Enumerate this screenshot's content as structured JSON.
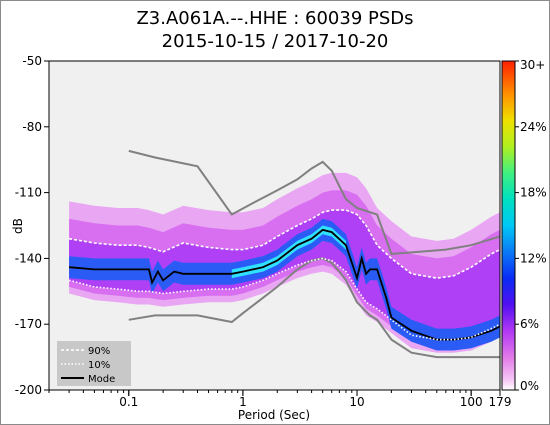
{
  "chart_data": {
    "type": "heatmap",
    "title": "Z3.A061A.--.HHE : 60039 PSDs",
    "subtitle": "2015-10-15 / 2017-10-20",
    "xlabel": "Period (Sec)",
    "ylabel": "dB",
    "x_scale": "log",
    "xlim": [
      0.02,
      179
    ],
    "ylim": [
      -200,
      -50
    ],
    "x_ticks": [
      0.1,
      1,
      10,
      100,
      179
    ],
    "x_tick_labels": [
      "0.1",
      "1",
      "10",
      "100",
      "179"
    ],
    "y_ticks": [
      -50,
      -80,
      -110,
      -140,
      -170,
      -200
    ],
    "y_tick_labels": [
      "-50",
      "-80",
      "-110",
      "-140",
      "-170",
      "-200"
    ],
    "colorbar": {
      "ticks": [
        0,
        6,
        12,
        18,
        24,
        30
      ],
      "tick_labels": [
        "0%",
        "6%",
        "12%",
        "18%",
        "24%",
        "30+"
      ]
    },
    "legend_position": "bottom-left",
    "series": [
      {
        "name": "90%",
        "style": "white-dashed",
        "x": [
          0.03,
          0.05,
          0.08,
          0.12,
          0.15,
          0.2,
          0.3,
          0.5,
          0.8,
          1,
          1.5,
          2,
          3,
          4,
          5,
          6,
          8,
          10,
          12,
          15,
          20,
          30,
          50,
          70,
          100,
          150,
          179
        ],
        "y": [
          -131,
          -133,
          -134,
          -134,
          -135,
          -137,
          -133,
          -135,
          -136,
          -136,
          -134,
          -130,
          -125,
          -122,
          -119,
          -118,
          -118,
          -120,
          -125,
          -134,
          -140,
          -147,
          -149,
          -148,
          -144,
          -138,
          -136
        ]
      },
      {
        "name": "10%",
        "style": "white-dotted",
        "x": [
          0.03,
          0.05,
          0.08,
          0.12,
          0.15,
          0.2,
          0.3,
          0.5,
          0.8,
          1,
          1.5,
          2,
          3,
          4,
          5,
          6,
          8,
          10,
          12,
          15,
          20,
          30,
          50,
          70,
          100,
          150,
          179
        ],
        "y": [
          -150,
          -153,
          -154,
          -155,
          -155,
          -156,
          -155,
          -154,
          -154,
          -153,
          -150,
          -147,
          -143,
          -141,
          -140,
          -141,
          -146,
          -154,
          -160,
          -163,
          -168,
          -175,
          -177,
          -177,
          -176,
          -172,
          -170
        ]
      },
      {
        "name": "Mode",
        "style": "black-solid",
        "x": [
          0.03,
          0.05,
          0.08,
          0.12,
          0.15,
          0.16,
          0.18,
          0.2,
          0.25,
          0.3,
          0.5,
          0.8,
          1,
          1.5,
          2,
          3,
          4,
          5,
          6,
          8,
          10,
          11,
          12,
          13,
          15,
          18,
          20,
          30,
          50,
          70,
          100,
          150,
          179
        ],
        "y": [
          -144,
          -145,
          -145,
          -145,
          -145,
          -151,
          -146,
          -150,
          -146,
          -147,
          -147,
          -147,
          -146,
          -144,
          -141,
          -134,
          -131,
          -127,
          -128,
          -134,
          -149,
          -140,
          -147,
          -145,
          -145,
          -158,
          -167,
          -173,
          -177,
          -177,
          -176,
          -173,
          -171
        ]
      }
    ],
    "reference_curves": [
      {
        "name": "NHNM",
        "style": "gray-solid",
        "x": [
          0.1,
          0.17,
          0.4,
          0.8,
          1.2,
          2,
          3,
          4,
          5,
          6,
          7,
          8,
          10,
          15,
          20,
          60,
          100,
          179
        ],
        "y": [
          -91,
          -94,
          -98,
          -120,
          -115,
          -109,
          -104,
          -99,
          -96,
          -100,
          -107,
          -113,
          -117,
          -120,
          -138,
          -136,
          -134,
          -130
        ]
      },
      {
        "name": "NLNM",
        "style": "gray-solid",
        "x": [
          0.1,
          0.17,
          0.4,
          0.8,
          1,
          2,
          3,
          4,
          5,
          6,
          7,
          8,
          10,
          13,
          15,
          20,
          30,
          50,
          70,
          100,
          179
        ],
        "y": [
          -168,
          -166,
          -166,
          -169,
          -165,
          -153,
          -145,
          -141,
          -140,
          -142,
          -146,
          -150,
          -160,
          -166,
          -168,
          -177,
          -183,
          -185,
          -185,
          -185,
          -185
        ]
      }
    ]
  },
  "legend": {
    "p90": "90%",
    "p10": "10%",
    "mode": "Mode"
  },
  "colors": {
    "plot_bg": "#f0f0f0",
    "psd_outer": "#e9a6f3",
    "psd_mid": "#d86ef0",
    "psd_inner": "#b040f5",
    "psd_core": "#2a5cf5",
    "psd_peak": "#30e0ff",
    "percentile": "#ffffff",
    "mode": "#000000",
    "noise_model": "#808080",
    "legend_bg": "#c8c8c8"
  }
}
